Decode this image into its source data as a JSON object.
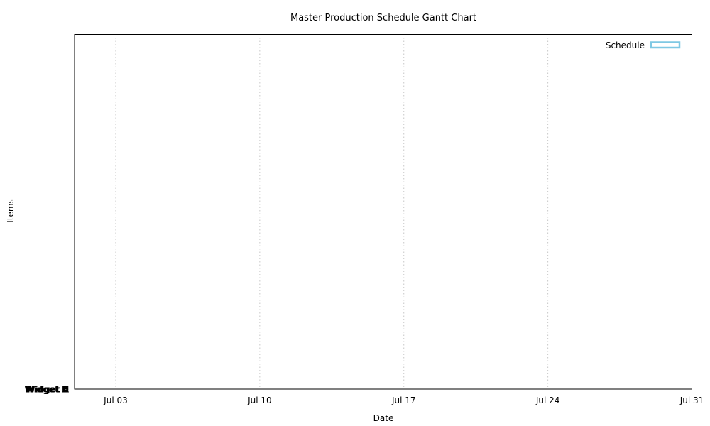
{
  "chart_data": {
    "type": "gantt",
    "title": "Master Production Schedule Gantt Chart",
    "xlabel": "Date",
    "ylabel": "Items",
    "x_ticks": [
      "Jul 03",
      "Jul 10",
      "Jul 17",
      "Jul 24",
      "Jul 31"
    ],
    "x_tick_dates": [
      "2023-07-03",
      "2023-07-10",
      "2023-07-17",
      "2023-07-24",
      "2023-07-31"
    ],
    "xlim": [
      "2023-07-01",
      "2023-07-31"
    ],
    "y_ticks_overlapping": [
      "Widget A",
      "Widget B",
      "Widget C",
      "Widget D",
      "Widget E"
    ],
    "series": [
      {
        "name": "Schedule",
        "color": "#7ec8e3",
        "tasks": []
      }
    ],
    "legend_position": "top-right",
    "grid": {
      "x": true,
      "y": false,
      "style": "dotted"
    }
  }
}
